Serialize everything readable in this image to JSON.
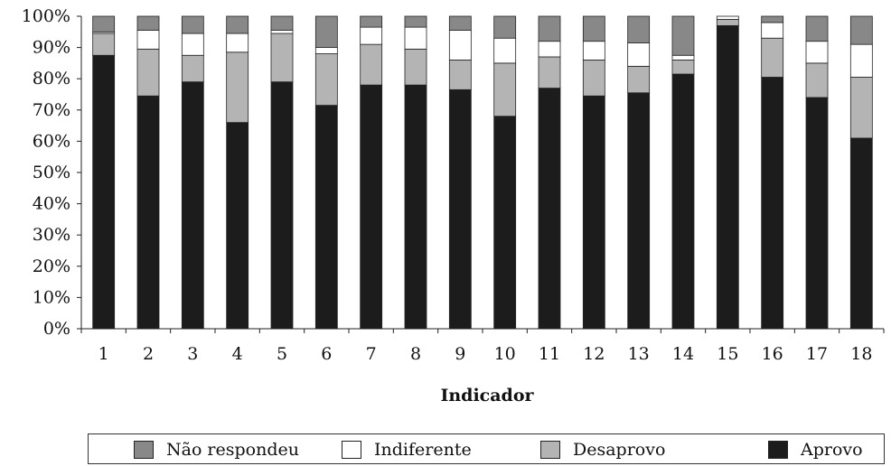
{
  "chart_data": {
    "type": "bar",
    "stacked": true,
    "title": "",
    "xlabel": "Indicador",
    "ylabel": "",
    "ylim": [
      0,
      100
    ],
    "y_ticks": [
      "0%",
      "10%",
      "20%",
      "30%",
      "40%",
      "50%",
      "60%",
      "70%",
      "80%",
      "90%",
      "100%"
    ],
    "categories": [
      "1",
      "2",
      "3",
      "4",
      "5",
      "6",
      "7",
      "8",
      "9",
      "10",
      "11",
      "12",
      "13",
      "14",
      "15",
      "16",
      "17",
      "18"
    ],
    "series": [
      {
        "name": "Aprovo",
        "color": "#1c1c1c",
        "values": [
          87.5,
          74.5,
          79,
          66,
          79,
          71.5,
          78,
          78,
          76.5,
          68,
          77,
          74.5,
          75.5,
          81.5,
          97,
          80.5,
          74,
          61
        ]
      },
      {
        "name": "Desaprovo",
        "color": "#b4b4b4",
        "values": [
          7,
          15,
          8.5,
          22.5,
          15.5,
          16.5,
          13,
          11.5,
          9.5,
          17,
          10,
          11.5,
          8.5,
          4.5,
          2,
          12.5,
          11,
          19.5
        ]
      },
      {
        "name": "Indiferente",
        "color": "#ffffff",
        "values": [
          0.5,
          6,
          7,
          6,
          1,
          2,
          5.5,
          7,
          9.5,
          8,
          5,
          6,
          7.5,
          1.5,
          1,
          5,
          7,
          10.5
        ]
      },
      {
        "name": "Não respondeu",
        "color": "#888888",
        "values": [
          5,
          4.5,
          5.5,
          5.5,
          4.5,
          10,
          3.5,
          3.5,
          4.5,
          7,
          8,
          8,
          8.5,
          12.5,
          0,
          2,
          8,
          9
        ]
      }
    ],
    "legend": {
      "position": "bottom",
      "order": [
        "Não respondeu",
        "Indiferente",
        "Desaprovo",
        "Aprovo"
      ]
    },
    "grid": false
  }
}
